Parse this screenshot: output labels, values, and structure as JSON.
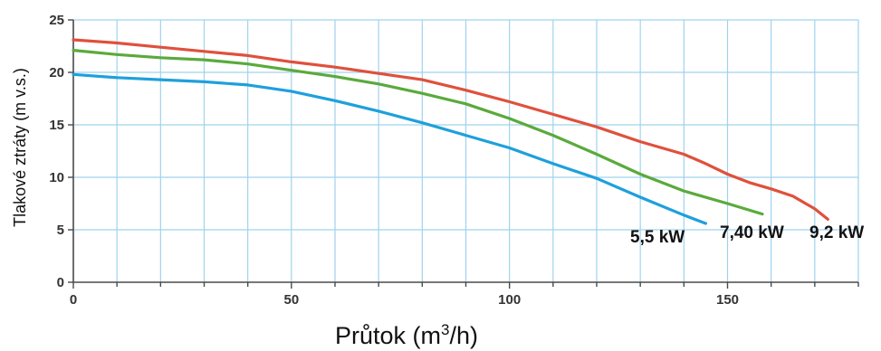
{
  "chart_data": {
    "type": "line",
    "xlabel_main": "Průtok (m",
    "xlabel_sup": "3",
    "xlabel_tail": "/h)",
    "ylabel": "Tlakové ztráty (m v.s.)",
    "xlim": [
      0,
      180
    ],
    "ylim": [
      0,
      25
    ],
    "x_ticks": [
      0,
      50,
      100,
      150
    ],
    "x_tick_labels": [
      "0",
      "50",
      "100",
      "150"
    ],
    "y_ticks": [
      0,
      5,
      10,
      15,
      20,
      25
    ],
    "y_tick_labels": [
      "0",
      "5",
      "10",
      "15",
      "20",
      "25"
    ],
    "grid": true,
    "series": [
      {
        "name": "5,5 kW",
        "color": "#1ea0dc",
        "points": [
          [
            0,
            19.8
          ],
          [
            10,
            19.5
          ],
          [
            20,
            19.3
          ],
          [
            30,
            19.1
          ],
          [
            40,
            18.8
          ],
          [
            45,
            18.5
          ],
          [
            50,
            18.2
          ],
          [
            60,
            17.3
          ],
          [
            70,
            16.3
          ],
          [
            80,
            15.2
          ],
          [
            90,
            14.0
          ],
          [
            100,
            12.8
          ],
          [
            110,
            11.3
          ],
          [
            120,
            9.9
          ],
          [
            130,
            8.1
          ],
          [
            140,
            6.4
          ],
          [
            145,
            5.6
          ]
        ]
      },
      {
        "name": "7,40 kW",
        "color": "#5aaa3c",
        "points": [
          [
            0,
            22.1
          ],
          [
            10,
            21.7
          ],
          [
            20,
            21.4
          ],
          [
            30,
            21.2
          ],
          [
            40,
            20.8
          ],
          [
            50,
            20.2
          ],
          [
            60,
            19.6
          ],
          [
            70,
            18.9
          ],
          [
            80,
            18.0
          ],
          [
            90,
            17.0
          ],
          [
            100,
            15.6
          ],
          [
            110,
            14.0
          ],
          [
            120,
            12.2
          ],
          [
            130,
            10.3
          ],
          [
            140,
            8.7
          ],
          [
            150,
            7.5
          ],
          [
            158,
            6.5
          ]
        ]
      },
      {
        "name": "9,2 kW",
        "color": "#e0503c",
        "points": [
          [
            0,
            23.1
          ],
          [
            10,
            22.8
          ],
          [
            20,
            22.4
          ],
          [
            30,
            22.0
          ],
          [
            40,
            21.6
          ],
          [
            50,
            21.0
          ],
          [
            60,
            20.5
          ],
          [
            70,
            19.9
          ],
          [
            80,
            19.3
          ],
          [
            90,
            18.3
          ],
          [
            100,
            17.2
          ],
          [
            110,
            16.0
          ],
          [
            120,
            14.8
          ],
          [
            130,
            13.4
          ],
          [
            140,
            12.2
          ],
          [
            145,
            11.3
          ],
          [
            150,
            10.3
          ],
          [
            155,
            9.5
          ],
          [
            160,
            8.9
          ],
          [
            165,
            8.2
          ],
          [
            170,
            7.0
          ],
          [
            173,
            6.0
          ]
        ]
      }
    ]
  }
}
